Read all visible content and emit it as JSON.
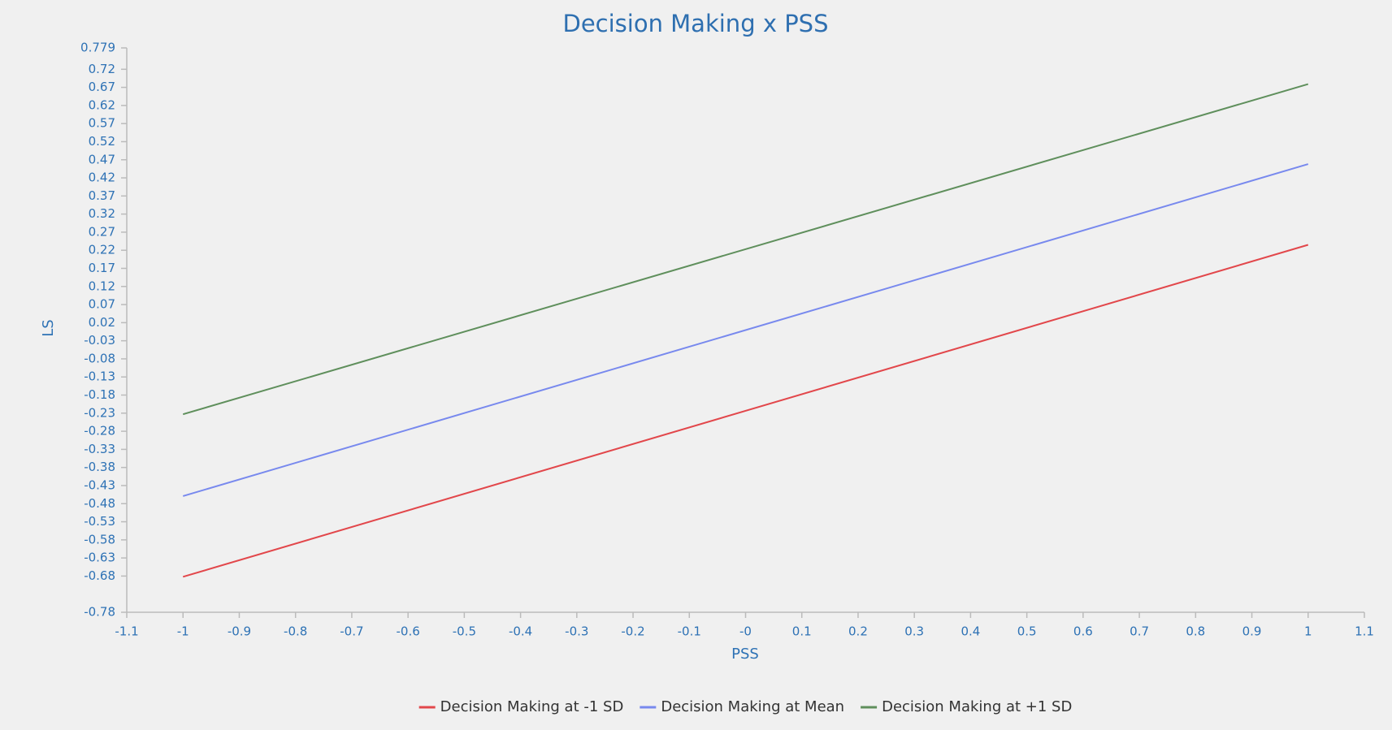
{
  "chart_data": {
    "type": "line",
    "title": "Decision Making x PSS",
    "x_label": "PSS",
    "y_label": "LS",
    "x": [
      -1,
      1
    ],
    "series": [
      {
        "name": "Decision Making at -1 SD",
        "color": "#e2474b",
        "values": [
          -0.682,
          0.235
        ]
      },
      {
        "name": "Decision Making at Mean",
        "color": "#7889ee",
        "values": [
          -0.459,
          0.458
        ]
      },
      {
        "name": "Decision Making at +1 SD",
        "color": "#5f8f5c",
        "values": [
          -0.233,
          0.679
        ]
      }
    ],
    "xlim": [
      -1.1,
      1.1
    ],
    "xticks": [
      -1.1,
      -1,
      -0.9,
      -0.8,
      -0.7,
      -0.6,
      -0.5,
      -0.4,
      -0.3,
      -0.2,
      -0.1,
      {
        "value": 0,
        "label": "-0"
      },
      0.1,
      0.2,
      0.3,
      0.4,
      0.5,
      0.6,
      0.7,
      0.8,
      0.9,
      1,
      1.1
    ],
    "ylim": [
      -0.78,
      0.779
    ],
    "yticks": [
      0.779,
      0.72,
      0.67,
      0.62,
      0.57,
      0.52,
      0.47,
      0.42,
      0.37,
      0.32,
      0.27,
      0.22,
      0.17,
      0.12,
      0.07,
      0.02,
      -0.03,
      -0.08,
      -0.13,
      -0.18,
      -0.23,
      -0.28,
      -0.33,
      -0.38,
      -0.43,
      -0.48,
      -0.53,
      -0.58,
      -0.63,
      -0.68,
      -0.78
    ],
    "grid": false,
    "legend": "bottom"
  }
}
